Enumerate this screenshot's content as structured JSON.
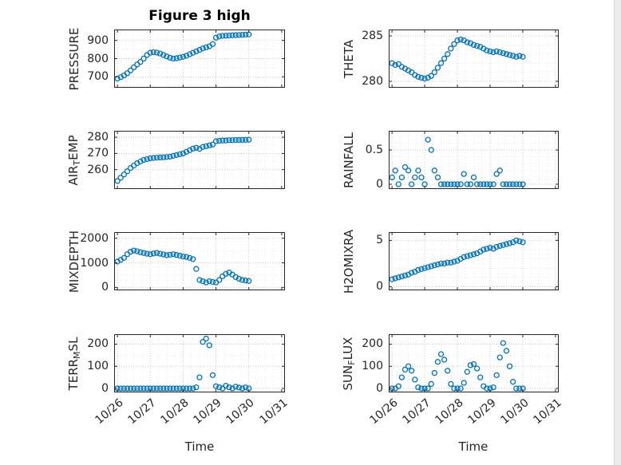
{
  "title": "Figure 3 high",
  "xlabel": "Time",
  "accent": "#0072BD",
  "text_color": "#262626",
  "xlim": [
    25.9,
    31.1
  ],
  "x_ticks": {
    "values": [
      26,
      27,
      28,
      29,
      30,
      31
    ],
    "labels": [
      "10/26",
      "10/27",
      "10/28",
      "10/29",
      "10/30",
      "10/31"
    ]
  },
  "x": [
    26,
    26.1,
    26.2,
    26.3,
    26.4,
    26.5,
    26.6,
    26.7,
    26.8,
    26.9,
    27,
    27.1,
    27.2,
    27.3,
    27.4,
    27.5,
    27.6,
    27.7,
    27.8,
    27.9,
    28,
    28.1,
    28.2,
    28.3,
    28.4,
    28.5,
    28.6,
    28.7,
    28.8,
    28.9,
    29,
    29.1,
    29.2,
    29.3,
    29.4,
    29.5,
    29.6,
    29.7,
    29.8,
    29.9,
    30
  ],
  "chart_data": [
    {
      "id": "pressure",
      "type": "scatter",
      "col": 0,
      "row": 0,
      "label": "PRESSURE",
      "label_parts": [
        {
          "t": "PRESSURE"
        }
      ],
      "ylim": [
        640,
        960
      ],
      "yticks": [
        700,
        800,
        900
      ],
      "y": [
        690,
        698,
        708,
        720,
        735,
        752,
        768,
        782,
        800,
        820,
        832,
        835,
        833,
        828,
        820,
        812,
        805,
        800,
        802,
        806,
        810,
        816,
        824,
        832,
        840,
        848,
        856,
        862,
        868,
        880,
        915,
        922,
        925,
        926,
        927,
        928,
        929,
        930,
        931,
        932,
        933
      ]
    },
    {
      "id": "air_temp",
      "type": "scatter",
      "col": 0,
      "row": 1,
      "label": "AIR_TEMP",
      "label_parts": [
        {
          "t": "AIR"
        },
        {
          "t": "T",
          "sub": true
        },
        {
          "t": "EMP"
        }
      ],
      "ylim": [
        248,
        284
      ],
      "yticks": [
        260,
        270,
        280
      ],
      "y": [
        253,
        255,
        257,
        259,
        261,
        262.5,
        264,
        265,
        266,
        266.5,
        267,
        267.2,
        267.4,
        267.5,
        267.6,
        267.8,
        268,
        268.5,
        269,
        269.5,
        270,
        271,
        272,
        273,
        273.5,
        272.8,
        274,
        274.5,
        275,
        275.5,
        277.5,
        277.8,
        278,
        278,
        278.2,
        278.2,
        278.3,
        278.3,
        278.4,
        278.4,
        278.5
      ]
    },
    {
      "id": "mixdepth",
      "type": "scatter",
      "col": 0,
      "row": 2,
      "label": "MIXDEPTH",
      "label_parts": [
        {
          "t": "MIXDEPTH"
        }
      ],
      "ylim": [
        -120,
        2250
      ],
      "yticks": [
        0,
        1000,
        2000
      ],
      "y": [
        1050,
        1120,
        1200,
        1350,
        1450,
        1500,
        1470,
        1430,
        1400,
        1370,
        1350,
        1380,
        1400,
        1370,
        1340,
        1310,
        1330,
        1350,
        1320,
        1290,
        1260,
        1240,
        1200,
        1150,
        750,
        300,
        250,
        200,
        250,
        220,
        200,
        300,
        450,
        550,
        600,
        520,
        420,
        350,
        300,
        280,
        260
      ]
    },
    {
      "id": "terr_msl",
      "type": "scatter",
      "col": 0,
      "row": 3,
      "label": "TERR_MSL",
      "label_parts": [
        {
          "t": "TERR"
        },
        {
          "t": "M",
          "sub": true
        },
        {
          "t": "SL"
        }
      ],
      "ylim": [
        -18,
        245
      ],
      "yticks": [
        0,
        100,
        200
      ],
      "y": [
        0,
        0,
        0,
        0,
        0,
        0,
        0,
        0,
        0,
        0,
        0,
        0,
        0,
        0,
        0,
        0,
        0,
        0,
        0,
        0,
        0,
        0,
        0,
        0,
        5,
        50,
        210,
        225,
        195,
        60,
        10,
        5,
        0,
        12,
        5,
        0,
        8,
        4,
        0,
        5,
        0
      ]
    },
    {
      "id": "theta",
      "type": "scatter",
      "col": 1,
      "row": 0,
      "label": "THETA",
      "label_parts": [
        {
          "t": "THETA"
        }
      ],
      "ylim": [
        279.3,
        285.7
      ],
      "yticks": [
        280,
        285
      ],
      "y": [
        282,
        281.8,
        281.9,
        281.6,
        281.4,
        281.2,
        281,
        280.7,
        280.5,
        280.4,
        280.3,
        280.4,
        280.6,
        281,
        281.5,
        282,
        282.5,
        283,
        283.6,
        284.1,
        284.5,
        284.6,
        284.5,
        284.3,
        284.2,
        284,
        283.9,
        283.8,
        283.6,
        283.4,
        283.3,
        283.2,
        283.3,
        283.2,
        283.1,
        283,
        282.9,
        282.8,
        282.7,
        282.8,
        282.7
      ]
    },
    {
      "id": "rainfall",
      "type": "scatter",
      "col": 1,
      "row": 1,
      "label": "RAINFALL",
      "label_parts": [
        {
          "t": "RAINFALL"
        }
      ],
      "ylim": [
        -0.07,
        0.78
      ],
      "yticks": [
        0,
        0.5
      ],
      "y": [
        0.1,
        0.2,
        0,
        0.1,
        0.25,
        0.2,
        0,
        0.1,
        0.2,
        0.1,
        0,
        0.65,
        0.5,
        0.2,
        0.1,
        0,
        0,
        0,
        0,
        0,
        0,
        0,
        0.15,
        0,
        0,
        0.1,
        0,
        0,
        0,
        0,
        0,
        0,
        0.15,
        0.2,
        0,
        0,
        0,
        0,
        0,
        0,
        0
      ]
    },
    {
      "id": "h2omixra",
      "type": "scatter",
      "col": 1,
      "row": 2,
      "label": "H2OMIXRA",
      "label_parts": [
        {
          "t": "H2OMIXRA"
        }
      ],
      "ylim": [
        -0.4,
        5.9
      ],
      "yticks": [
        0,
        5
      ],
      "y": [
        0.8,
        0.9,
        1,
        1.1,
        1.2,
        1.3,
        1.5,
        1.6,
        1.8,
        1.9,
        2,
        2.1,
        2.2,
        2.3,
        2.4,
        2.5,
        2.5,
        2.6,
        2.6,
        2.7,
        2.8,
        3,
        3.2,
        3.3,
        3.4,
        3.5,
        3.6,
        3.8,
        4,
        4.1,
        4.2,
        4.1,
        4.3,
        4.4,
        4.5,
        4.6,
        4.7,
        4.8,
        5,
        4.9,
        4.8
      ]
    },
    {
      "id": "sun_flux",
      "type": "scatter",
      "col": 1,
      "row": 3,
      "label": "SUN_FLUX",
      "label_parts": [
        {
          "t": "SUN"
        },
        {
          "t": "F",
          "sub": true
        },
        {
          "t": "LUX"
        }
      ],
      "ylim": [
        -18,
        245
      ],
      "yticks": [
        0,
        100,
        200
      ],
      "y": [
        0,
        0,
        10,
        50,
        85,
        100,
        80,
        40,
        5,
        0,
        0,
        0,
        20,
        70,
        120,
        155,
        130,
        80,
        20,
        0,
        0,
        0,
        25,
        75,
        105,
        110,
        90,
        50,
        10,
        0,
        0,
        5,
        60,
        140,
        205,
        170,
        100,
        30,
        0,
        0,
        0
      ]
    }
  ]
}
